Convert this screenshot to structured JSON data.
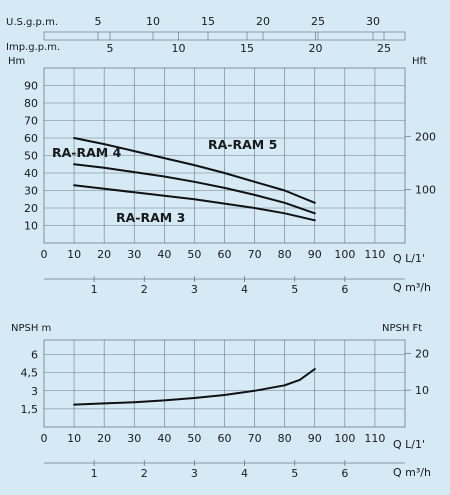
{
  "header": {
    "usgpm_label": "U.S.g.p.m.",
    "impgpm_label": "Imp.g.p.m.",
    "usgpm_ticks": [
      "5",
      "10",
      "15",
      "20",
      "25",
      "30"
    ],
    "impgpm_ticks": [
      "5",
      "10",
      "15",
      "20",
      "25"
    ]
  },
  "chart_data": [
    {
      "type": "line",
      "ylabel": "Hm",
      "ylabel_right": "Hft",
      "xlabel": "Q L/1'",
      "xlabel_secondary": "Q m³/h",
      "xlim": [
        0,
        120
      ],
      "ylim": [
        0,
        100
      ],
      "x_ticks": [
        "0",
        "10",
        "20",
        "30",
        "40",
        "50",
        "60",
        "70",
        "80",
        "90",
        "100",
        "110"
      ],
      "y_ticks": [
        "10",
        "20",
        "30",
        "40",
        "50",
        "60",
        "70",
        "80",
        "90"
      ],
      "y_right_ticks": [
        "100",
        "200"
      ],
      "secondary_x_ticks": [
        "1",
        "2",
        "3",
        "4",
        "5",
        "6"
      ],
      "grid": true,
      "series": [
        {
          "name": "RA-RAM 5",
          "x": [
            10,
            20,
            30,
            40,
            50,
            60,
            70,
            80,
            90
          ],
          "values": [
            60,
            56.5,
            52.5,
            48.5,
            44.5,
            40,
            35,
            30,
            23
          ]
        },
        {
          "name": "RA-RAM 4",
          "x": [
            10,
            20,
            30,
            40,
            50,
            60,
            70,
            80,
            90
          ],
          "values": [
            45,
            43,
            40.5,
            38,
            35,
            31.5,
            27.5,
            23,
            17
          ]
        },
        {
          "name": "RA-RAM 3",
          "x": [
            10,
            20,
            30,
            40,
            50,
            60,
            70,
            80,
            90
          ],
          "values": [
            33,
            31,
            29,
            27,
            25,
            22.5,
            20,
            17,
            13
          ]
        }
      ]
    },
    {
      "type": "line",
      "ylabel": "NPSH m",
      "ylabel_right": "NPSH Ft",
      "xlabel": "Q L/1'",
      "xlabel_secondary": "Q m³/h",
      "xlim": [
        0,
        120
      ],
      "ylim": [
        0,
        7.2
      ],
      "x_ticks": [
        "0",
        "10",
        "20",
        "30",
        "40",
        "50",
        "60",
        "70",
        "80",
        "90",
        "100",
        "110"
      ],
      "y_ticks": [
        "1,5",
        "3",
        "4,5",
        "6"
      ],
      "y_right_ticks": [
        "10",
        "20"
      ],
      "secondary_x_ticks": [
        "1",
        "2",
        "3",
        "4",
        "5",
        "6"
      ],
      "grid": true,
      "series": [
        {
          "x": [
            10,
            20,
            30,
            40,
            50,
            60,
            70,
            80,
            85,
            90
          ],
          "values": [
            1.85,
            1.95,
            2.05,
            2.2,
            2.4,
            2.65,
            3.0,
            3.45,
            3.9,
            4.8
          ]
        }
      ]
    }
  ]
}
